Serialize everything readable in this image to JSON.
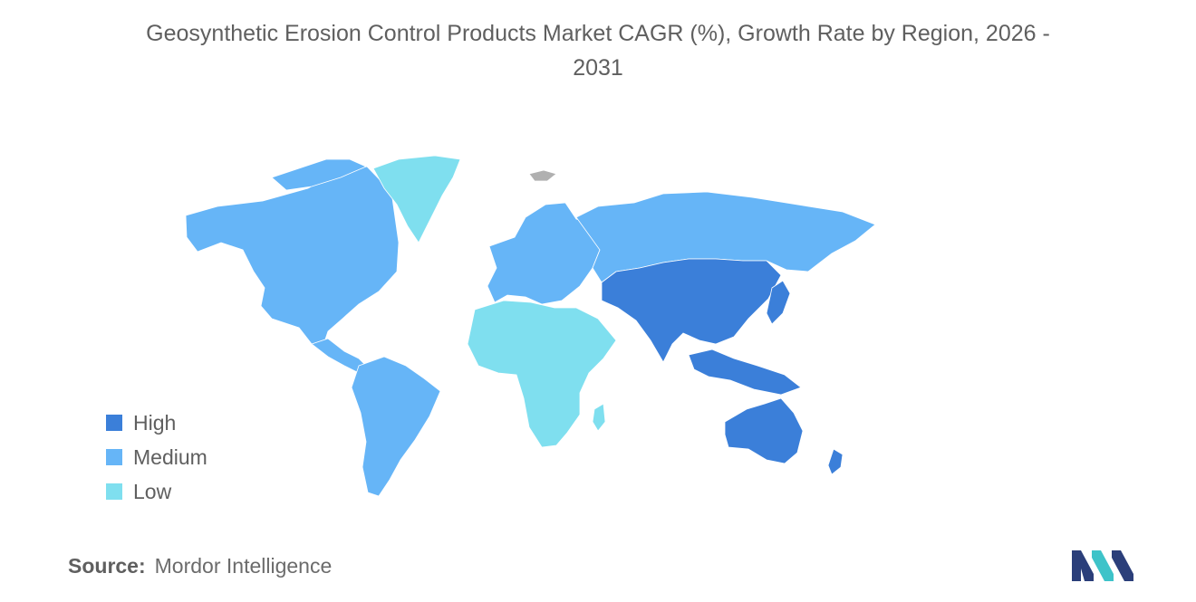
{
  "title": {
    "line1": "Geosynthetic Erosion Control Products Market CAGR (%), Growth Rate by Region, 2026 -",
    "line2": "2031"
  },
  "legend": [
    {
      "label": "High",
      "color": "#3b7fd9"
    },
    {
      "label": "Medium",
      "color": "#66b5f7"
    },
    {
      "label": "Low",
      "color": "#7fdfef"
    }
  ],
  "regions": [
    {
      "name": "North America",
      "level": "Medium"
    },
    {
      "name": "South America",
      "level": "Medium"
    },
    {
      "name": "Europe",
      "level": "Medium"
    },
    {
      "name": "Russia and Central Asia",
      "level": "Medium"
    },
    {
      "name": "Greenland",
      "level": "Low"
    },
    {
      "name": "Middle East and Africa",
      "level": "Low"
    },
    {
      "name": "Asia-Pacific",
      "level": "High"
    },
    {
      "name": "Australia and New Zealand",
      "level": "High"
    }
  ],
  "no_data_color": "#b0b0b0",
  "source": {
    "label": "Source:",
    "value": "Mordor Intelligence"
  },
  "logo": {
    "icon": "mordor-intelligence-logo",
    "colors": [
      "#2b3f7a",
      "#3ec3c9"
    ]
  }
}
